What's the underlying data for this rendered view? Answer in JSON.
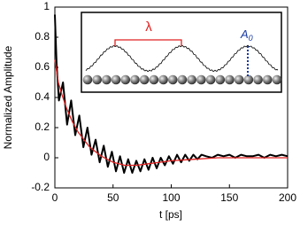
{
  "chart_data": {
    "type": "line",
    "xlabel": "t [ps]",
    "ylabel": "Normalized Amplitude",
    "xlim": [
      0,
      200
    ],
    "xticks": [
      0,
      50,
      100,
      150,
      200
    ],
    "ylim": [
      -0.2,
      1
    ],
    "yticks": [
      -0.2,
      0,
      0.2,
      0.4,
      0.6,
      0.8,
      1
    ],
    "inset_labels": {
      "wavelength": "λ",
      "amplitude": "A",
      "amplitude_subscript": "0"
    },
    "series": [
      {
        "color": "#000000",
        "x": [
          0,
          1.5,
          3.5,
          7,
          10.5,
          14,
          17.5,
          21,
          24.5,
          28,
          31.5,
          35,
          38.5,
          42,
          45.5,
          49,
          52.5,
          56,
          59.5,
          63,
          66.5,
          70,
          73.5,
          77,
          80.5,
          84,
          87.5,
          91,
          94.5,
          98,
          101.5,
          105,
          108.5,
          112,
          115.5,
          119,
          122.5,
          126,
          130,
          135,
          140,
          145,
          150,
          155,
          160,
          165,
          170,
          175,
          180,
          185,
          190,
          195,
          200
        ],
        "values": [
          0.95,
          0.62,
          0.38,
          0.5,
          0.22,
          0.38,
          0.15,
          0.28,
          0.07,
          0.2,
          0.02,
          0.12,
          -0.03,
          0.08,
          -0.06,
          0.04,
          -0.09,
          0.01,
          -0.1,
          -0.01,
          -0.1,
          -0.02,
          -0.09,
          -0.01,
          -0.08,
          0,
          -0.07,
          0,
          -0.05,
          0.01,
          -0.04,
          0.02,
          -0.03,
          0.02,
          -0.02,
          0.02,
          -0.01,
          0.02,
          0.01,
          0,
          0.02,
          0.01,
          0.02,
          0,
          0.02,
          0.01,
          0.01,
          0.02,
          0,
          0.02,
          0.01,
          0.02,
          0.01
        ]
      },
      {
        "color": "#e02020",
        "x": [
          0,
          3,
          6,
          10,
          15,
          20,
          25,
          30,
          40,
          50,
          60,
          70,
          80,
          90,
          100,
          120,
          140,
          160,
          180,
          200
        ],
        "values": [
          0.65,
          0.5,
          0.42,
          0.33,
          0.24,
          0.17,
          0.12,
          0.07,
          0.01,
          -0.03,
          -0.05,
          -0.05,
          -0.04,
          -0.03,
          -0.02,
          -0.01,
          0,
          0,
          0,
          0
        ]
      }
    ]
  }
}
